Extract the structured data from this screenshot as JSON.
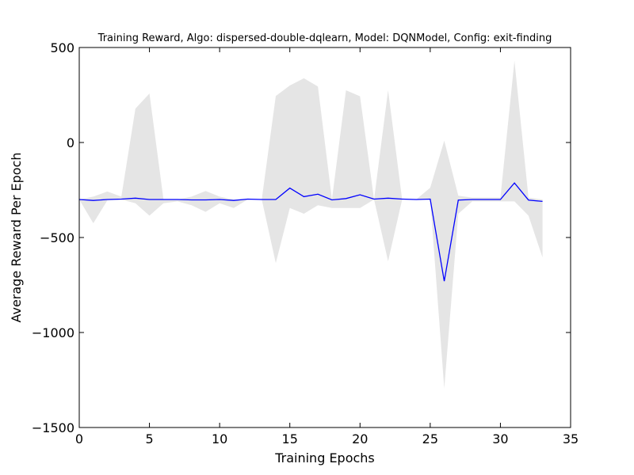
{
  "chart_data": {
    "type": "line",
    "title": "Training Reward, Algo: dispersed-double-dqlearn, Model: DQNModel, Config: exit-finding",
    "xlabel": "Training Epochs",
    "ylabel": "Average Reward Per Epoch",
    "xlim": [
      0,
      35
    ],
    "ylim": [
      -1500,
      500
    ],
    "xticks": [
      0,
      5,
      10,
      15,
      20,
      25,
      30,
      35
    ],
    "yticks": [
      500,
      0,
      -500,
      -1000,
      -1500
    ],
    "xtick_labels": [
      "0",
      "5",
      "10",
      "15",
      "20",
      "25",
      "30",
      "35"
    ],
    "ytick_labels": [
      "500",
      "0",
      "−500",
      "−1000",
      "−1500"
    ],
    "grid": false,
    "series": [
      {
        "color": "#0000ff",
        "x": [
          0,
          1,
          2,
          3,
          4,
          5,
          6,
          7,
          8,
          9,
          10,
          11,
          12,
          13,
          14,
          15,
          16,
          17,
          18,
          19,
          20,
          21,
          22,
          23,
          24,
          25,
          26,
          27,
          28,
          29,
          30,
          31,
          32,
          33
        ],
        "values": [
          -300,
          -305,
          -300,
          -298,
          -293,
          -300,
          -300,
          -300,
          -302,
          -302,
          -300,
          -305,
          -298,
          -300,
          -300,
          -240,
          -285,
          -272,
          -302,
          -295,
          -275,
          -298,
          -293,
          -298,
          -300,
          -298,
          -730,
          -303,
          -300,
          -300,
          -300,
          -213,
          -303,
          -310
        ]
      }
    ],
    "band": {
      "color": "#e5e5e5",
      "x": [
        0,
        1,
        2,
        3,
        4,
        5,
        6,
        7,
        8,
        9,
        10,
        11,
        12,
        13,
        14,
        15,
        16,
        17,
        18,
        19,
        20,
        21,
        22,
        23,
        24,
        25,
        26,
        27,
        28,
        29,
        30,
        31,
        32,
        33
      ],
      "upper": [
        -300,
        -285,
        -258,
        -285,
        178,
        258,
        -300,
        -300,
        -285,
        -255,
        -285,
        -300,
        -300,
        -300,
        245,
        300,
        338,
        295,
        -300,
        275,
        243,
        -300,
        275,
        -300,
        -300,
        -238,
        10,
        -280,
        -290,
        -290,
        -290,
        430,
        -290,
        -300
      ],
      "lower": [
        -300,
        -425,
        -305,
        -300,
        -320,
        -385,
        -320,
        -310,
        -330,
        -365,
        -320,
        -345,
        -300,
        -300,
        -635,
        -345,
        -375,
        -330,
        -345,
        -345,
        -345,
        -300,
        -625,
        -300,
        -300,
        -300,
        -1295,
        -375,
        -310,
        -310,
        -310,
        -310,
        -385,
        -605
      ]
    }
  }
}
